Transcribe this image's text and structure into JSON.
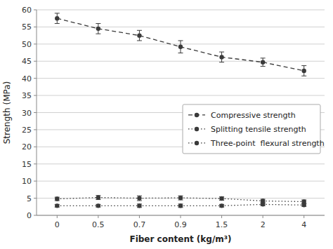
{
  "chart_data": {
    "type": "line",
    "xlabel": "Fiber content (kg/m³)",
    "ylabel": "Strength (MPa)",
    "categories": [
      "0",
      "0.5",
      "0.7",
      "0.9",
      "1.5",
      "2",
      "4"
    ],
    "series": [
      {
        "name": "Compressive strength",
        "color": "#3a3a3a",
        "line_style": "dashed",
        "marker": "circle",
        "values": [
          57.5,
          54.5,
          52.5,
          49.2,
          46.2,
          44.7,
          42.2
        ],
        "errors": [
          1.5,
          1.5,
          1.5,
          1.8,
          1.5,
          1.2,
          1.5
        ]
      },
      {
        "name": "Splitting tensile strength",
        "color": "#3a3a3a",
        "line_style": "dotted",
        "marker": "circle",
        "values": [
          4.8,
          5.2,
          5.0,
          5.1,
          4.9,
          4.2,
          4.0
        ],
        "errors": [
          0.5,
          0.6,
          0.7,
          0.6,
          0.5,
          0.5,
          0.5
        ]
      },
      {
        "name": "Three-point  flexural strength",
        "color": "#3a3a3a",
        "line_style": "dotted",
        "marker": "circle",
        "values": [
          2.8,
          2.8,
          2.8,
          2.8,
          2.8,
          3.2,
          3.0
        ],
        "errors": [
          0.4,
          0.4,
          0.5,
          0.5,
          0.4,
          0.4,
          0.4
        ]
      }
    ],
    "ylim": [
      0,
      60
    ],
    "yticks": [
      0,
      5,
      10,
      15,
      20,
      25,
      30,
      35,
      40,
      45,
      50,
      55,
      60
    ],
    "grid": true,
    "legend": "right"
  }
}
